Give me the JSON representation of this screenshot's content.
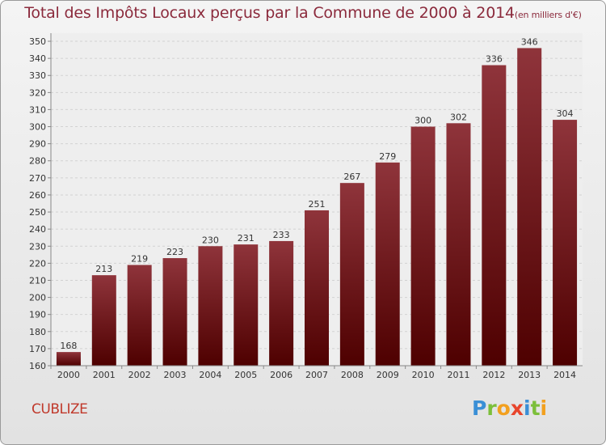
{
  "title": {
    "main": "Total des Impôts Locaux perçus par la Commune de 2000 à 2014",
    "unit": "(en milliers d'€)"
  },
  "commune": "CUBLIZE",
  "logo": "Proxiti",
  "colors": {
    "title": "#8b2a3c",
    "bar_top": "#8f343b",
    "bar_bottom": "#4e0000",
    "commune": "#c0392b"
  },
  "chart_data": {
    "type": "bar",
    "categories": [
      "2000",
      "2001",
      "2002",
      "2003",
      "2004",
      "2005",
      "2006",
      "2007",
      "2008",
      "2009",
      "2010",
      "2011",
      "2012",
      "2013",
      "2014"
    ],
    "values": [
      168,
      213,
      219,
      223,
      230,
      231,
      233,
      251,
      267,
      279,
      300,
      302,
      336,
      346,
      304
    ],
    "title": "Total des Impôts Locaux perçus par la Commune de 2000 à 2014(en milliers d'€)",
    "ylim": [
      160,
      350
    ],
    "yticks": [
      160,
      170,
      180,
      190,
      200,
      210,
      220,
      230,
      240,
      250,
      260,
      270,
      280,
      290,
      300,
      310,
      320,
      330,
      340,
      350
    ],
    "grid": true,
    "legend": "none"
  }
}
